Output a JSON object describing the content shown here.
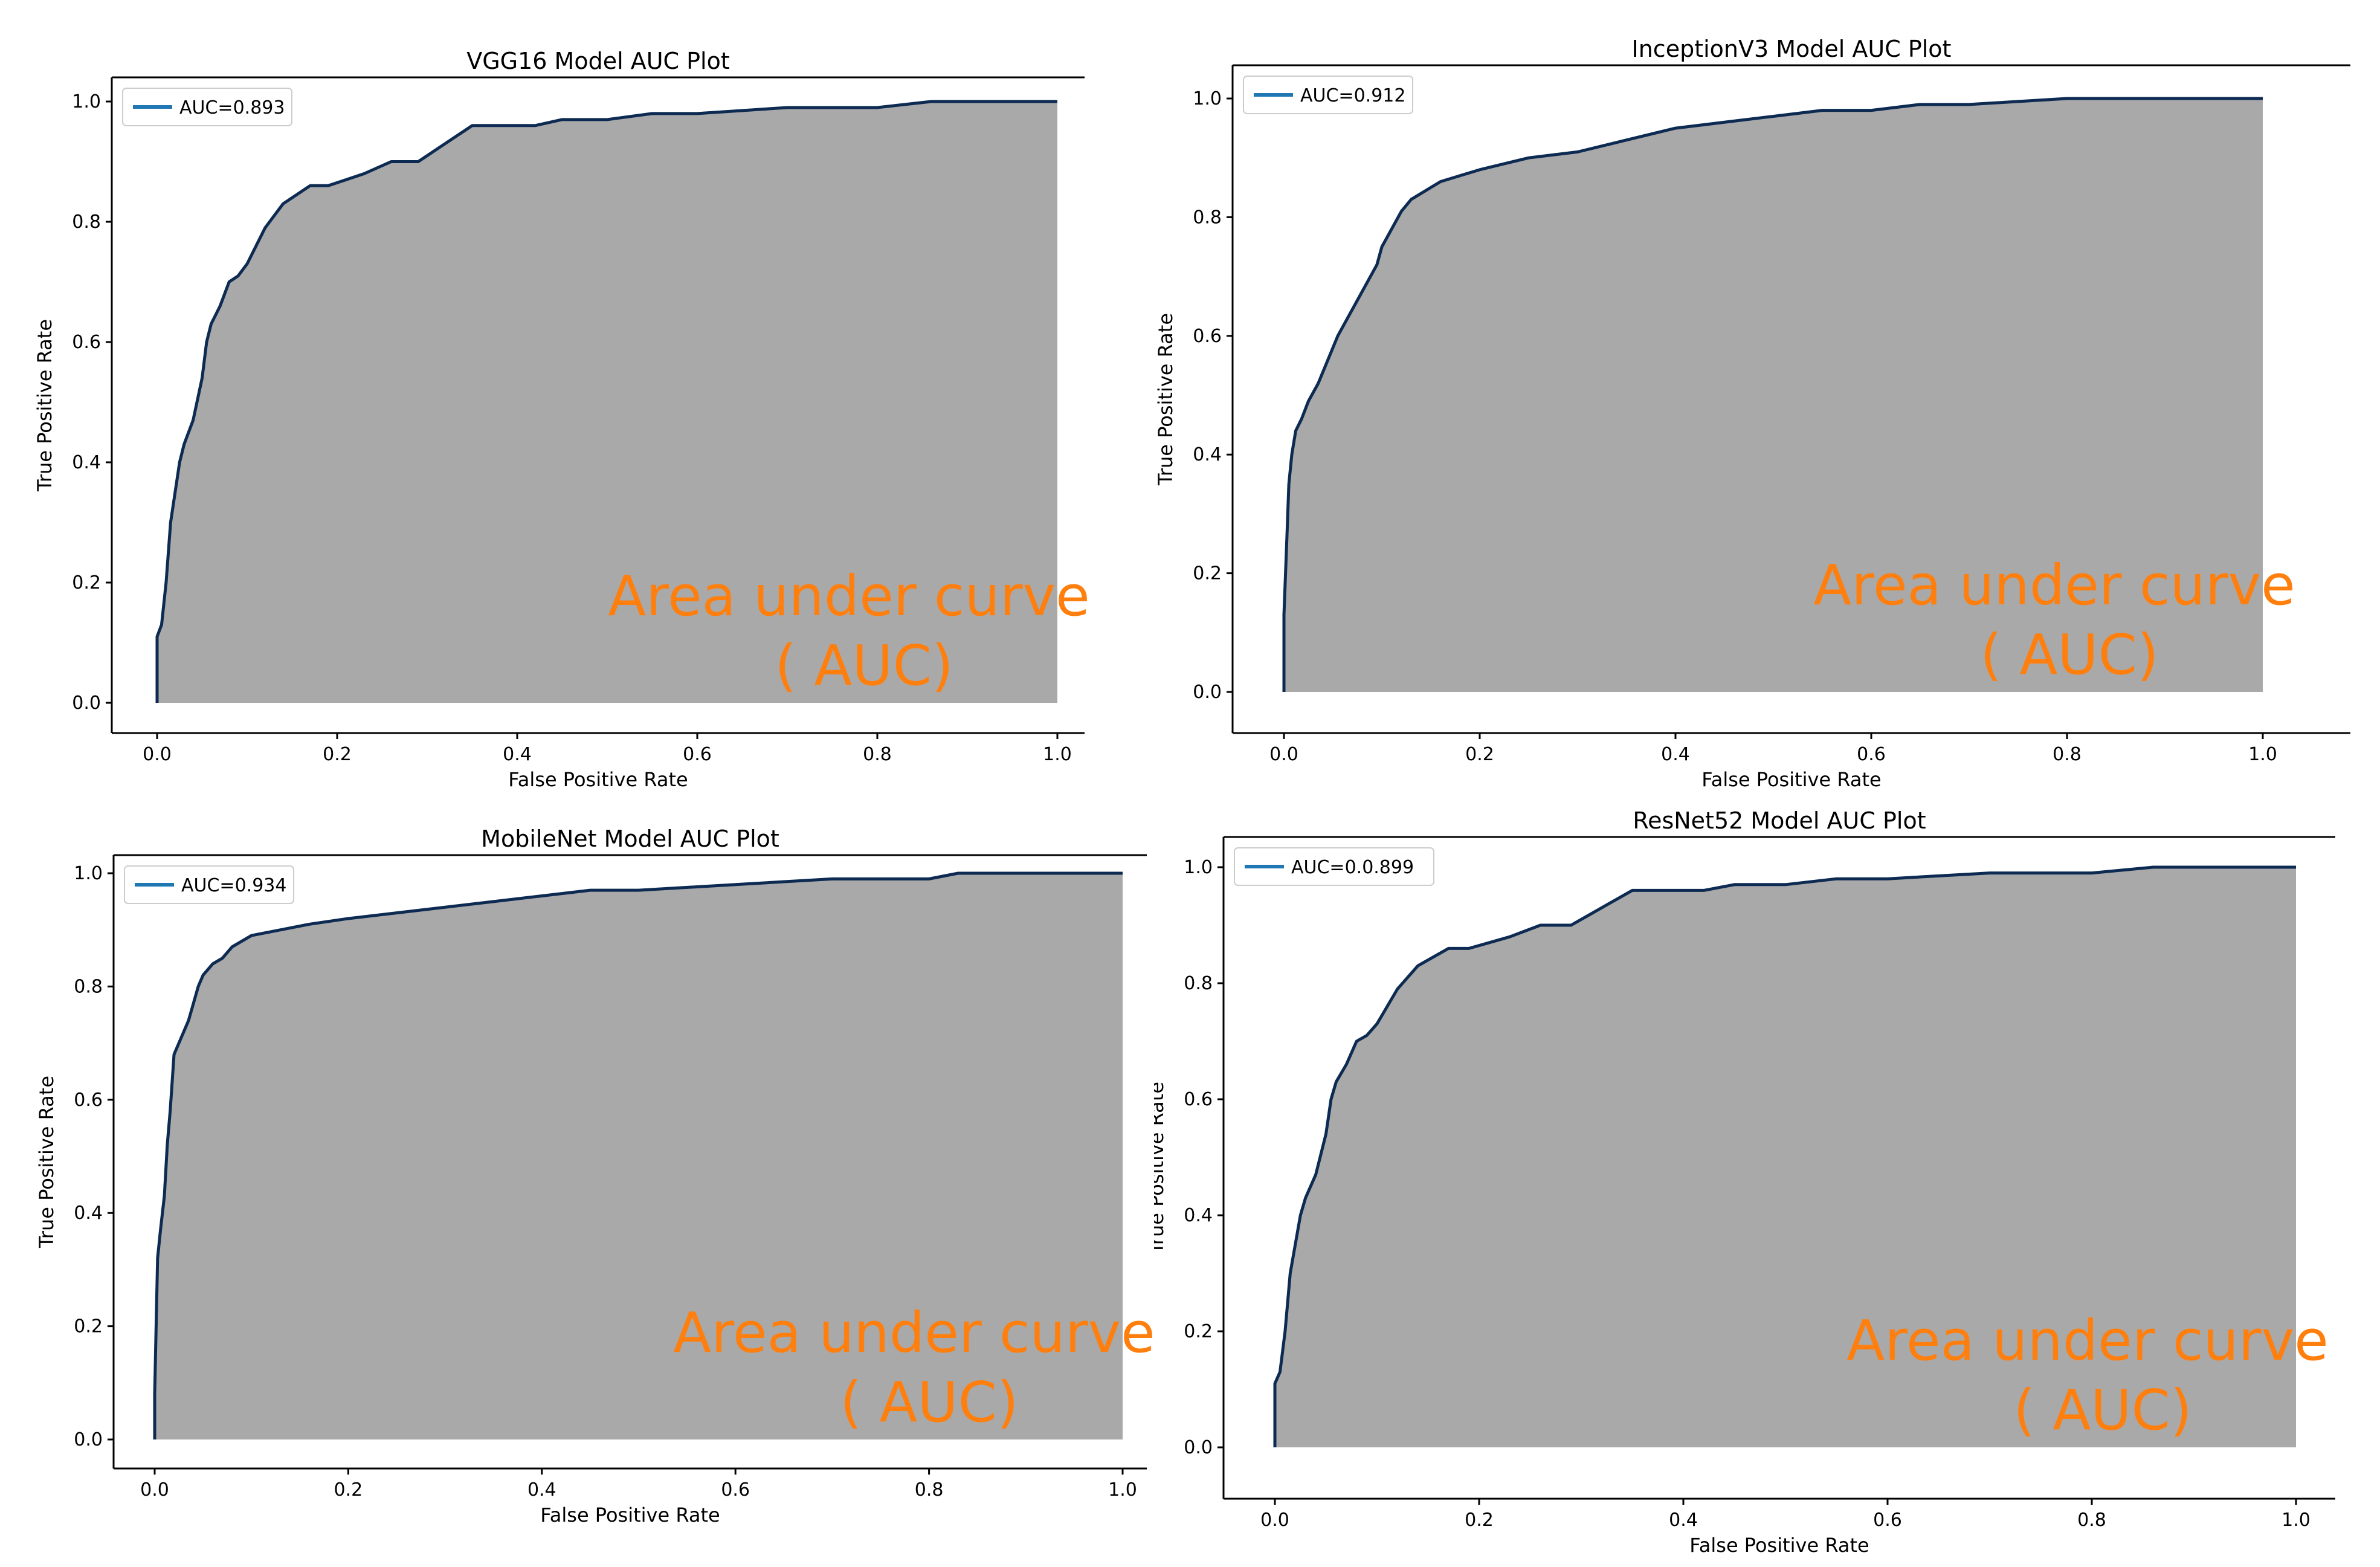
{
  "colors": {
    "curve": "#0d2b52",
    "legend_line": "#1f77b4",
    "area": "#a9a9a9",
    "annotation": "#ff7f0e"
  },
  "chart_data": [
    {
      "type": "area",
      "title": "VGG16 Model AUC Plot",
      "xlabel": "False Positive Rate",
      "ylabel": "True Positive Rate",
      "xlim": [
        0.0,
        1.0
      ],
      "ylim": [
        0.0,
        1.0
      ],
      "xticks": [
        "0.0",
        "0.2",
        "0.4",
        "0.6",
        "0.8",
        "1.0"
      ],
      "yticks": [
        "0.0",
        "0.2",
        "0.4",
        "0.6",
        "0.8",
        "1.0"
      ],
      "legend": "AUC=0.893",
      "annotation": [
        "Area under curve",
        "( AUC)"
      ],
      "x": [
        0.0,
        0.0,
        0.005,
        0.01,
        0.015,
        0.02,
        0.025,
        0.03,
        0.04,
        0.05,
        0.055,
        0.06,
        0.07,
        0.08,
        0.09,
        0.1,
        0.11,
        0.12,
        0.13,
        0.14,
        0.15,
        0.17,
        0.19,
        0.21,
        0.23,
        0.26,
        0.29,
        0.31,
        0.33,
        0.35,
        0.38,
        0.42,
        0.45,
        0.5,
        0.55,
        0.6,
        0.7,
        0.8,
        0.86,
        0.9,
        1.0
      ],
      "y": [
        0.0,
        0.11,
        0.13,
        0.2,
        0.3,
        0.35,
        0.4,
        0.43,
        0.47,
        0.54,
        0.6,
        0.63,
        0.66,
        0.7,
        0.71,
        0.73,
        0.76,
        0.79,
        0.81,
        0.83,
        0.84,
        0.86,
        0.86,
        0.87,
        0.88,
        0.9,
        0.9,
        0.92,
        0.94,
        0.96,
        0.96,
        0.96,
        0.97,
        0.97,
        0.98,
        0.98,
        0.99,
        0.99,
        1.0,
        1.0,
        1.0
      ]
    },
    {
      "type": "area",
      "title": "InceptionV3 Model AUC Plot",
      "xlabel": "False Positive Rate",
      "ylabel": "True Positive Rate",
      "xlim": [
        0.0,
        1.0
      ],
      "ylim": [
        0.0,
        1.0
      ],
      "xticks": [
        "0.0",
        "0.2",
        "0.4",
        "0.6",
        "0.8",
        "1.0"
      ],
      "yticks": [
        "0.0",
        "0.2",
        "0.4",
        "0.6",
        "0.8",
        "1.0"
      ],
      "legend": "AUC=0.912",
      "annotation": [
        "Area under curve",
        "( AUC)"
      ],
      "x": [
        0.0,
        0.0,
        0.003,
        0.005,
        0.008,
        0.012,
        0.018,
        0.025,
        0.035,
        0.045,
        0.055,
        0.065,
        0.075,
        0.085,
        0.095,
        0.1,
        0.11,
        0.12,
        0.13,
        0.14,
        0.16,
        0.18,
        0.2,
        0.25,
        0.3,
        0.35,
        0.4,
        0.45,
        0.5,
        0.55,
        0.6,
        0.65,
        0.7,
        0.8,
        0.9,
        1.0
      ],
      "y": [
        0.0,
        0.13,
        0.26,
        0.35,
        0.4,
        0.44,
        0.46,
        0.49,
        0.52,
        0.56,
        0.6,
        0.63,
        0.66,
        0.69,
        0.72,
        0.75,
        0.78,
        0.81,
        0.83,
        0.84,
        0.86,
        0.87,
        0.88,
        0.9,
        0.91,
        0.93,
        0.95,
        0.96,
        0.97,
        0.98,
        0.98,
        0.99,
        0.99,
        1.0,
        1.0,
        1.0
      ]
    },
    {
      "type": "area",
      "title": "MobileNet Model AUC Plot",
      "xlabel": "False Positive Rate",
      "ylabel": "True Positive Rate",
      "xlim": [
        0.0,
        1.0
      ],
      "ylim": [
        0.0,
        1.0
      ],
      "xticks": [
        "0.0",
        "0.2",
        "0.4",
        "0.6",
        "0.8",
        "1.0"
      ],
      "yticks": [
        "0.0",
        "0.2",
        "0.4",
        "0.6",
        "0.8",
        "1.0"
      ],
      "legend": "AUC=0.934",
      "annotation": [
        "Area under curve",
        "( AUC)"
      ],
      "x": [
        0.0,
        0.0,
        0.003,
        0.006,
        0.01,
        0.013,
        0.016,
        0.02,
        0.025,
        0.03,
        0.035,
        0.04,
        0.045,
        0.05,
        0.06,
        0.07,
        0.08,
        0.09,
        0.1,
        0.13,
        0.16,
        0.2,
        0.25,
        0.3,
        0.35,
        0.4,
        0.45,
        0.5,
        0.6,
        0.7,
        0.8,
        0.83,
        0.9,
        1.0
      ],
      "y": [
        0.0,
        0.08,
        0.32,
        0.37,
        0.43,
        0.52,
        0.58,
        0.68,
        0.7,
        0.72,
        0.74,
        0.77,
        0.8,
        0.82,
        0.84,
        0.85,
        0.87,
        0.88,
        0.89,
        0.9,
        0.91,
        0.92,
        0.93,
        0.94,
        0.95,
        0.96,
        0.97,
        0.97,
        0.98,
        0.99,
        0.99,
        1.0,
        1.0,
        1.0
      ]
    },
    {
      "type": "area",
      "title": "ResNet52 Model AUC Plot",
      "xlabel": "False Positive Rate",
      "ylabel": "True Positive Rate",
      "xlim": [
        0.0,
        1.0
      ],
      "ylim": [
        0.0,
        1.0
      ],
      "xticks": [
        "0.0",
        "0.2",
        "0.4",
        "0.6",
        "0.8",
        "1.0"
      ],
      "yticks": [
        "0.0",
        "0.2",
        "0.4",
        "0.6",
        "0.8",
        "1.0"
      ],
      "legend": "AUC=0.0.899",
      "annotation": [
        "Area under curve",
        "( AUC)"
      ],
      "x": [
        0.0,
        0.0,
        0.005,
        0.01,
        0.015,
        0.02,
        0.025,
        0.03,
        0.04,
        0.05,
        0.055,
        0.06,
        0.07,
        0.08,
        0.09,
        0.1,
        0.11,
        0.12,
        0.13,
        0.14,
        0.15,
        0.17,
        0.19,
        0.21,
        0.23,
        0.26,
        0.29,
        0.31,
        0.33,
        0.35,
        0.38,
        0.42,
        0.45,
        0.5,
        0.55,
        0.6,
        0.7,
        0.8,
        0.86,
        0.9,
        1.0
      ],
      "y": [
        0.0,
        0.11,
        0.13,
        0.2,
        0.3,
        0.35,
        0.4,
        0.43,
        0.47,
        0.54,
        0.6,
        0.63,
        0.66,
        0.7,
        0.71,
        0.73,
        0.76,
        0.79,
        0.81,
        0.83,
        0.84,
        0.86,
        0.86,
        0.87,
        0.88,
        0.9,
        0.9,
        0.92,
        0.94,
        0.96,
        0.96,
        0.96,
        0.97,
        0.97,
        0.98,
        0.98,
        0.99,
        0.99,
        1.0,
        1.0,
        1.0
      ]
    }
  ]
}
